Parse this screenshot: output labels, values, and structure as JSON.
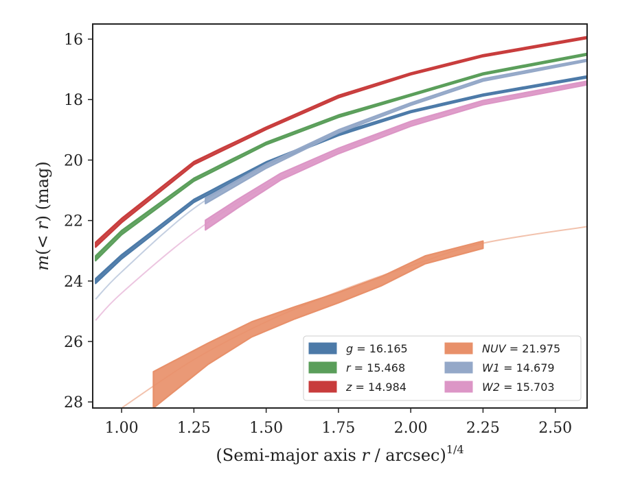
{
  "chart_data": {
    "type": "line",
    "title": "",
    "xlabel": "(Semi-major axis r / arcsec)",
    "xlabel_parts": [
      "(Semi-major axis ",
      "r",
      " / arcsec)",
      "1/4"
    ],
    "ylabel": "m(< r) (mag)",
    "ylabel_parts": [
      "m",
      "(< ",
      "r",
      ") (mag)"
    ],
    "xlim": [
      0.9,
      2.61
    ],
    "ylim": [
      28.2,
      15.5
    ],
    "y_inverted": true,
    "x_ticks": [
      1.0,
      1.25,
      1.5,
      1.75,
      2.0,
      2.25,
      2.5
    ],
    "x_tick_labels": [
      "1.00",
      "1.25",
      "1.50",
      "1.75",
      "2.00",
      "2.25",
      "2.50"
    ],
    "y_ticks": [
      16,
      18,
      20,
      22,
      24,
      26,
      28
    ],
    "y_tick_labels": [
      "16",
      "18",
      "20",
      "22",
      "24",
      "26",
      "28"
    ],
    "grid": false,
    "legend_position": "bottom-right",
    "legend_columns": 2,
    "series": [
      {
        "band": "g",
        "value": "16.165",
        "color": "#4c7aa8",
        "faint_x": [
          0.91,
          1.0,
          1.25,
          1.5,
          1.75,
          2.0,
          2.25,
          2.61
        ],
        "faint_y": [
          24.0,
          23.2,
          21.35,
          20.1,
          19.15,
          18.4,
          17.85,
          17.25
        ],
        "band_x": [
          0.91,
          1.0,
          1.25,
          1.5,
          1.75,
          2.0,
          2.25,
          2.61
        ],
        "band_y": [
          24.0,
          23.2,
          21.35,
          20.1,
          19.15,
          18.4,
          17.85,
          17.25
        ],
        "band_err": [
          0.08,
          0.07,
          0.05,
          0.04,
          0.04,
          0.03,
          0.03,
          0.03
        ]
      },
      {
        "band": "r",
        "value": "15.468",
        "color": "#5a9e5a",
        "faint_x": [
          0.91,
          1.0,
          1.25,
          1.5,
          1.75,
          2.0,
          2.25,
          2.61
        ],
        "faint_y": [
          23.25,
          22.4,
          20.65,
          19.45,
          18.55,
          17.85,
          17.15,
          16.5
        ],
        "band_x": [
          0.91,
          1.0,
          1.25,
          1.5,
          1.75,
          2.0,
          2.25,
          2.61
        ],
        "band_y": [
          23.25,
          22.4,
          20.65,
          19.45,
          18.55,
          17.85,
          17.15,
          16.5
        ],
        "band_err": [
          0.08,
          0.07,
          0.05,
          0.04,
          0.04,
          0.03,
          0.03,
          0.03
        ]
      },
      {
        "band": "z",
        "value": "14.984",
        "color": "#c83c3c",
        "faint_x": [
          0.91,
          1.0,
          1.25,
          1.5,
          1.75,
          2.0,
          2.25,
          2.61
        ],
        "faint_y": [
          22.8,
          22.0,
          20.1,
          18.95,
          17.9,
          17.15,
          16.55,
          15.95
        ],
        "band_x": [
          0.91,
          1.0,
          1.25,
          1.5,
          1.75,
          2.0,
          2.25,
          2.61
        ],
        "band_y": [
          22.8,
          22.0,
          20.1,
          18.95,
          17.9,
          17.15,
          16.55,
          15.95
        ],
        "band_err": [
          0.08,
          0.07,
          0.05,
          0.04,
          0.04,
          0.03,
          0.03,
          0.03
        ]
      },
      {
        "band": "NUV",
        "value": "21.975",
        "color": "#e8906a",
        "faint_x": [
          1.0,
          1.25,
          1.5,
          1.75,
          2.0,
          2.25,
          2.61
        ],
        "faint_y": [
          28.2,
          26.6,
          25.35,
          24.35,
          23.5,
          22.75,
          22.2
        ],
        "band_x": [
          1.11,
          1.3,
          1.45,
          1.6,
          1.75,
          1.9,
          2.05,
          2.25
        ],
        "band_y": [
          27.6,
          26.4,
          25.6,
          25.05,
          24.55,
          24.0,
          23.3,
          22.8
        ],
        "band_err": [
          0.6,
          0.35,
          0.25,
          0.2,
          0.17,
          0.15,
          0.13,
          0.12
        ]
      },
      {
        "band": "W1",
        "value": "14.679",
        "color": "#94a8c8",
        "faint_x": [
          0.91,
          1.0,
          1.25,
          1.5,
          1.75,
          2.0,
          2.25,
          2.61
        ],
        "faint_y": [
          24.6,
          23.7,
          21.6,
          20.2,
          19.05,
          18.15,
          17.35,
          16.7
        ],
        "band_x": [
          1.29,
          1.5,
          1.75,
          2.0,
          2.25,
          2.61
        ],
        "band_y": [
          21.35,
          20.2,
          19.05,
          18.15,
          17.35,
          16.7
        ],
        "band_err": [
          0.09,
          0.07,
          0.05,
          0.04,
          0.04,
          0.03
        ]
      },
      {
        "band": "W2",
        "value": "15.703",
        "color": "#dc96c6",
        "faint_x": [
          0.91,
          1.0,
          1.25,
          1.5,
          1.75,
          2.0,
          2.25,
          2.61
        ],
        "faint_y": [
          25.3,
          24.4,
          22.4,
          20.85,
          19.7,
          18.8,
          18.1,
          17.45
        ],
        "band_x": [
          1.29,
          1.4,
          1.55,
          1.75,
          2.0,
          2.25,
          2.61
        ],
        "band_y": [
          22.15,
          21.45,
          20.55,
          19.7,
          18.8,
          18.1,
          17.45
        ],
        "band_err": [
          0.16,
          0.14,
          0.11,
          0.09,
          0.08,
          0.07,
          0.06
        ]
      }
    ]
  }
}
